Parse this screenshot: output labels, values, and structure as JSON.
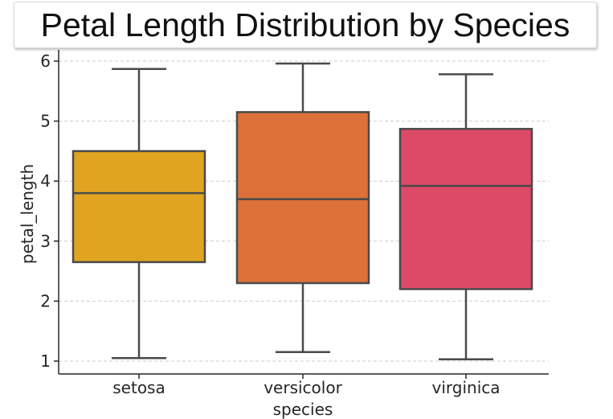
{
  "chart_data": {
    "type": "box",
    "title": "Petal Length Distribution by Species",
    "xlabel": "species",
    "ylabel": "petal_length",
    "ylim": [
      0.8,
      6.2
    ],
    "yticks": [
      1,
      2,
      3,
      4,
      5,
      6
    ],
    "grid": "horizontal dashed",
    "categories": [
      "setosa",
      "versicolor",
      "virginica"
    ],
    "boxes": [
      {
        "category": "setosa",
        "whisker_low": 1.05,
        "q1": 2.65,
        "median": 3.8,
        "q3": 4.5,
        "whisker_high": 5.87,
        "color": "#e0a420"
      },
      {
        "category": "versicolor",
        "whisker_low": 1.15,
        "q1": 2.3,
        "median": 3.7,
        "q3": 5.15,
        "whisker_high": 5.96,
        "color": "#dc723a"
      },
      {
        "category": "virginica",
        "whisker_low": 1.03,
        "q1": 2.2,
        "median": 3.92,
        "q3": 4.87,
        "whisker_high": 5.78,
        "color": "#dd4a67"
      }
    ],
    "line_color": "#4a4a4a",
    "grid_color": "#cccccc"
  }
}
